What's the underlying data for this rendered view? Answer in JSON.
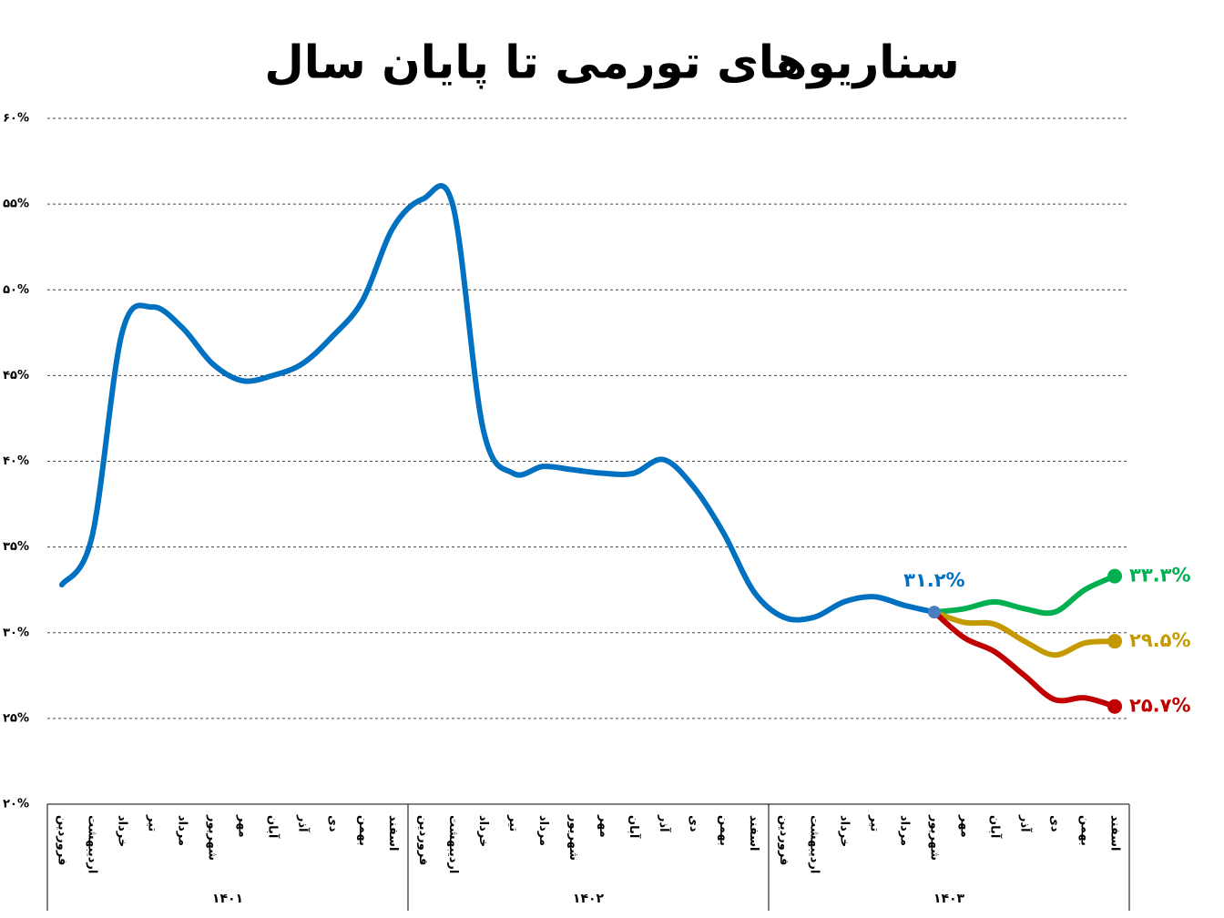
{
  "chart_data": {
    "type": "line",
    "title": "سناریوهای تورمی تا پایان سال",
    "categories": [
      "فروردین",
      "اردیبهشت",
      "خرداد",
      "تیر",
      "مرداد",
      "شهریور",
      "مهر",
      "آبان",
      "آذر",
      "دی",
      "بهمن",
      "اسفند",
      "فروردین",
      "اردیبهشت",
      "خرداد",
      "تیر",
      "مرداد",
      "شهریور",
      "مهر",
      "آبان",
      "آذر",
      "دی",
      "بهمن",
      "اسفند",
      "فروردین",
      "اردیبهشت",
      "خرداد",
      "تیر",
      "مرداد",
      "شهریور",
      "مهر",
      "آبان",
      "آذر",
      "دی",
      "بهمن",
      "اسفند"
    ],
    "category_groups": [
      "۱۴۰۱",
      "۱۴۰۲",
      "۱۴۰۳"
    ],
    "series": [
      {
        "color": "#0070c0",
        "values": [
          32.8,
          35.6,
          47.5,
          49.0,
          47.8,
          45.7,
          44.7,
          45.0,
          45.7,
          47.3,
          49.4,
          53.6,
          55.3,
          54.9,
          41.9,
          39.3,
          39.7,
          39.5,
          39.3,
          39.3,
          40.1,
          38.5,
          35.8,
          32.4,
          30.9,
          30.9,
          31.8,
          32.1,
          31.6,
          31.2,
          null,
          null,
          null,
          null,
          null,
          null
        ],
        "value_labels": [
          null,
          null,
          null,
          null,
          null,
          null,
          null,
          null,
          null,
          null,
          null,
          null,
          null,
          null,
          null,
          null,
          null,
          null,
          null,
          null,
          null,
          null,
          null,
          null,
          null,
          null,
          null,
          null,
          null,
          "۳۱.۲%",
          null,
          null,
          null,
          null,
          null,
          null
        ]
      },
      {
        "color": "#00b050",
        "values": [
          null,
          null,
          null,
          null,
          null,
          null,
          null,
          null,
          null,
          null,
          null,
          null,
          null,
          null,
          null,
          null,
          null,
          null,
          null,
          null,
          null,
          null,
          null,
          null,
          null,
          null,
          null,
          null,
          null,
          31.2,
          31.4,
          31.8,
          31.4,
          31.2,
          32.5,
          33.3
        ],
        "value_labels": [
          null,
          null,
          null,
          null,
          null,
          null,
          null,
          null,
          null,
          null,
          null,
          null,
          null,
          null,
          null,
          null,
          null,
          null,
          null,
          null,
          null,
          null,
          null,
          null,
          null,
          null,
          null,
          null,
          null,
          null,
          null,
          null,
          null,
          null,
          null,
          "۳۳.۳%"
        ]
      },
      {
        "color": "#c49a00",
        "values": [
          null,
          null,
          null,
          null,
          null,
          null,
          null,
          null,
          null,
          null,
          null,
          null,
          null,
          null,
          null,
          null,
          null,
          null,
          null,
          null,
          null,
          null,
          null,
          null,
          null,
          null,
          null,
          null,
          null,
          31.2,
          30.6,
          30.5,
          29.5,
          28.7,
          29.4,
          29.5
        ],
        "value_labels": [
          null,
          null,
          null,
          null,
          null,
          null,
          null,
          null,
          null,
          null,
          null,
          null,
          null,
          null,
          null,
          null,
          null,
          null,
          null,
          null,
          null,
          null,
          null,
          null,
          null,
          null,
          null,
          null,
          null,
          null,
          null,
          null,
          null,
          null,
          null,
          "۲۹.۵%"
        ]
      },
      {
        "color": "#c00000",
        "values": [
          null,
          null,
          null,
          null,
          null,
          null,
          null,
          null,
          null,
          null,
          null,
          null,
          null,
          null,
          null,
          null,
          null,
          null,
          null,
          null,
          null,
          null,
          null,
          null,
          null,
          null,
          null,
          null,
          null,
          31.2,
          29.7,
          28.9,
          27.5,
          26.1,
          26.2,
          25.7
        ],
        "value_labels": [
          null,
          null,
          null,
          null,
          null,
          null,
          null,
          null,
          null,
          null,
          null,
          null,
          null,
          null,
          null,
          null,
          null,
          null,
          null,
          null,
          null,
          null,
          null,
          null,
          null,
          null,
          null,
          null,
          null,
          null,
          null,
          null,
          null,
          null,
          null,
          "۲۵.۷%"
        ]
      }
    ],
    "ylim": [
      20,
      60
    ],
    "yticks": [
      {
        "value": 20,
        "label": "۲۰%"
      },
      {
        "value": 25,
        "label": "۲۵%"
      },
      {
        "value": 30,
        "label": "۳۰%"
      },
      {
        "value": 35,
        "label": "۳۵%"
      },
      {
        "value": 40,
        "label": "۴۰%"
      },
      {
        "value": 45,
        "label": "۴۵%"
      },
      {
        "value": 50,
        "label": "۵۰%"
      },
      {
        "value": 55,
        "label": "۵۵%"
      },
      {
        "value": 60,
        "label": "۶۰%"
      }
    ],
    "grid": true
  }
}
